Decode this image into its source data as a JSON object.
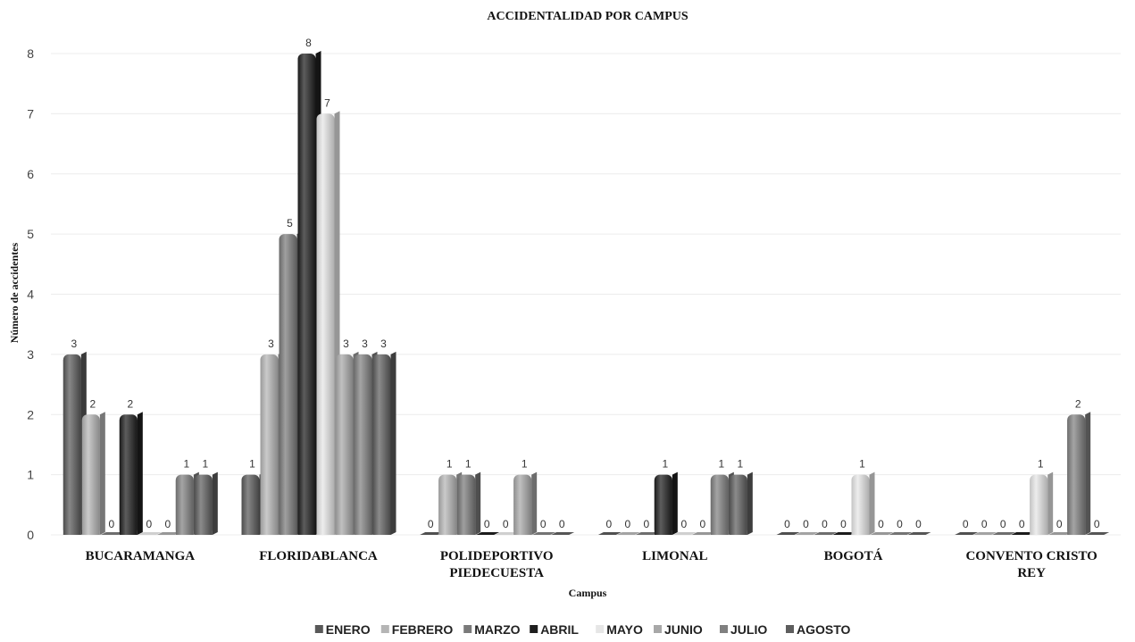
{
  "chart_data": {
    "type": "bar",
    "title": "ACCIDENTALIDAD POR CAMPUS",
    "xlabel": "Campus",
    "ylabel": "Número de accidentes",
    "ylim": [
      0,
      8
    ],
    "yticks": [
      "0",
      "1",
      "2",
      "3",
      "4",
      "5",
      "6",
      "7",
      "8"
    ],
    "grid": true,
    "legend_position": "bottom",
    "categories": [
      [
        "BUCARAMANGA"
      ],
      [
        "FLORIDABLANCA"
      ],
      [
        "POLIDEPORTIVO",
        "PIEDECUESTA"
      ],
      [
        "LIMONAL"
      ],
      [
        "BOGOTÁ"
      ],
      [
        "CONVENTO CRISTO",
        "REY"
      ]
    ],
    "series": [
      {
        "name": "ENERO",
        "color": "#595959",
        "values": [
          3,
          1,
          0,
          0,
          0,
          0
        ]
      },
      {
        "name": "FEBRERO",
        "color": "#b5b5b5",
        "values": [
          2,
          3,
          1,
          0,
          0,
          0
        ]
      },
      {
        "name": "MARZO",
        "color": "#7a7a7a",
        "values": [
          0,
          5,
          1,
          0,
          0,
          0
        ]
      },
      {
        "name": "ABRIL",
        "color": "#1e1e1e",
        "values": [
          2,
          8,
          0,
          1,
          0,
          0
        ]
      },
      {
        "name": "MAYO",
        "color": "#e6e6e6",
        "values": [
          0,
          7,
          0,
          0,
          1,
          1
        ]
      },
      {
        "name": "JUNIO",
        "color": "#a8a8a8",
        "values": [
          0,
          3,
          1,
          0,
          0,
          0
        ]
      },
      {
        "name": "JULIO",
        "color": "#808080",
        "values": [
          1,
          3,
          0,
          1,
          0,
          2
        ]
      },
      {
        "name": "AGOSTO",
        "color": "#5e5e5e",
        "values": [
          1,
          3,
          0,
          1,
          0,
          0
        ]
      }
    ]
  }
}
